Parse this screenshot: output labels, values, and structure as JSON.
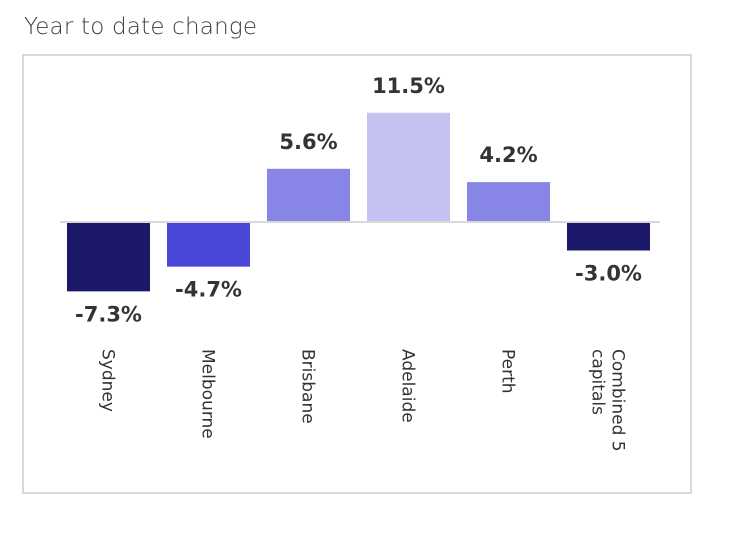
{
  "chart_title": "Year to date change",
  "chart_data": {
    "type": "bar",
    "title": "Year to date change",
    "categories": [
      "Sydney",
      "Melbourne",
      "Brisbane",
      "Adelaide",
      "Perth",
      "Combined 5 capitals"
    ],
    "values": [
      -7.3,
      -4.7,
      5.6,
      11.5,
      4.2,
      -3.0
    ],
    "value_labels": [
      "-7.3%",
      "-4.7%",
      "5.6%",
      "11.5%",
      "4.2%",
      "-3.0%"
    ],
    "category_label_lines": [
      [
        "Sydney"
      ],
      [
        "Melbourne"
      ],
      [
        "Brisbane"
      ],
      [
        "Adelaide"
      ],
      [
        "Perth"
      ],
      [
        "Combined 5",
        "capitals"
      ]
    ],
    "colors": [
      "#1b1869",
      "#4a47d8",
      "#8785e6",
      "#c4c2f0",
      "#8785e6",
      "#1b1869"
    ],
    "grid": false,
    "legend": "none"
  }
}
